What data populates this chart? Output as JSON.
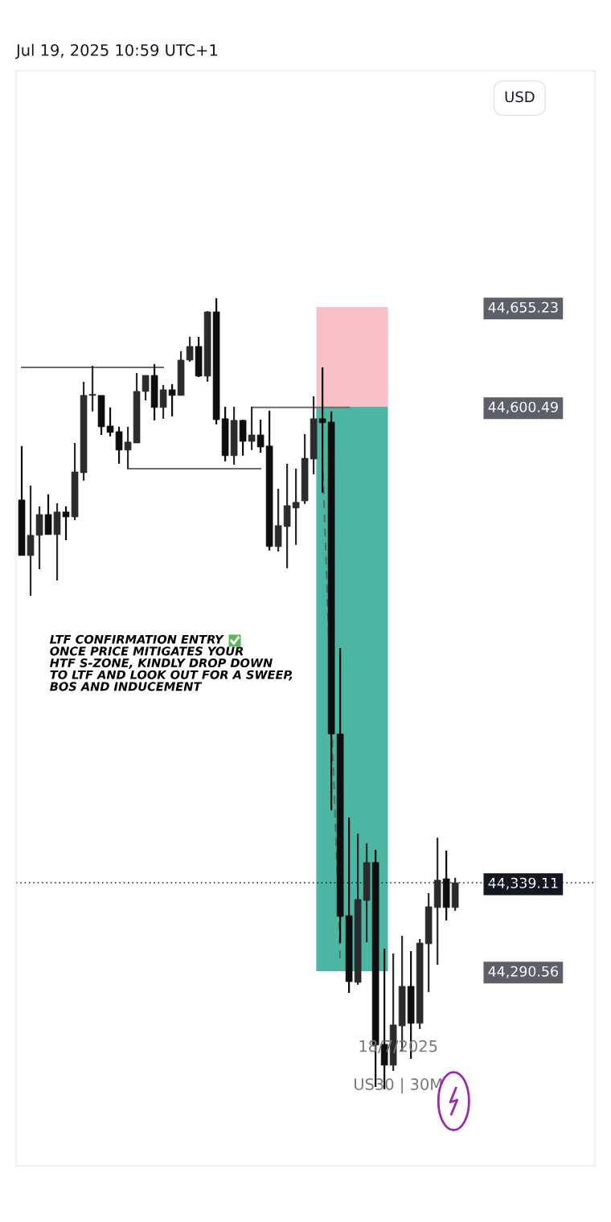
{
  "chart_data": {
    "type": "candlestick",
    "title": "Jul 19, 2025 10:59 UTC+1",
    "categories": [
      null,
      null,
      null,
      null,
      null,
      null,
      null,
      null,
      null,
      null,
      null,
      null,
      null,
      null,
      null,
      null,
      null,
      null,
      null,
      null,
      null,
      null,
      null,
      null,
      null,
      null,
      null,
      null,
      null,
      null,
      null,
      null,
      null,
      null,
      null,
      null,
      null,
      null,
      null,
      null,
      null,
      null,
      null,
      null,
      null,
      null,
      null,
      null,
      null,
      null
    ],
    "ohlc": [
      [
        44549.3,
        44578.9,
        44518.8,
        44518.8
      ],
      [
        44518.8,
        44557.2,
        44496.7,
        44529.9
      ],
      [
        44529.9,
        44545.8,
        44511.3,
        44541.3
      ],
      [
        44541.3,
        44552.4,
        44530.3,
        44530.3
      ],
      [
        44530.3,
        44547.5,
        44505.1,
        44542.7
      ],
      [
        44542.7,
        44545.8,
        44527.2,
        44540.0
      ],
      [
        44540.0,
        44580.6,
        44538.2,
        44564.7
      ],
      [
        44564.3,
        44614.2,
        44559.9,
        44606.7
      ],
      [
        44606.7,
        44623.0,
        44597.9,
        44607.1
      ],
      [
        44606.7,
        44606.7,
        44585.0,
        44589.5
      ],
      [
        44589.9,
        44600.1,
        44584.2,
        44586.4
      ],
      [
        44586.8,
        44589.5,
        44569.2,
        44576.7
      ],
      [
        44576.7,
        44589.5,
        44566.5,
        44581.1
      ],
      [
        44580.6,
        44619.0,
        44580.6,
        44608.9
      ],
      [
        44608.9,
        44617.7,
        44604.0,
        44617.7
      ],
      [
        44617.7,
        44623.9,
        44593.0,
        44600.1
      ],
      [
        44600.1,
        44612.4,
        44593.9,
        44609.8
      ],
      [
        44609.8,
        44612.9,
        44595.2,
        44606.7
      ],
      [
        44606.7,
        44631.0,
        44606.7,
        44626.1
      ],
      [
        44626.1,
        44638.9,
        44625.2,
        44633.6
      ],
      [
        44633.6,
        44638.9,
        44616.8,
        44617.3
      ],
      [
        44617.3,
        44653.0,
        44614.2,
        44652.6
      ],
      [
        44652.6,
        44660.1,
        44590.8,
        44593.4
      ],
      [
        44593.9,
        44600.5,
        44570.5,
        44573.6
      ],
      [
        44573.6,
        44600.5,
        44568.7,
        44593.0
      ],
      [
        44593.0,
        44593.4,
        44573.6,
        44581.5
      ],
      [
        44581.5,
        44600.5,
        44576.7,
        44585.0
      ],
      [
        44585.0,
        44593.4,
        44575.3,
        44578.4
      ],
      [
        44578.9,
        44598.3,
        44521.5,
        44523.7
      ],
      [
        44523.7,
        44555.5,
        44521.0,
        44535.2
      ],
      [
        44534.7,
        44569.2,
        44511.8,
        44546.2
      ],
      [
        44544.9,
        44566.5,
        44524.6,
        44548.0
      ],
      [
        44548.8,
        44585.5,
        44547.1,
        44572.2
      ],
      [
        44571.8,
        44606.2,
        44563.4,
        44593.9
      ],
      [
        44593.9,
        44622.1,
        44553.3,
        44591.7
      ],
      [
        44592.1,
        44597.9,
        44378.9,
        44420.8
      ],
      [
        44420.8,
        44468.0,
        44306.0,
        44320.6
      ],
      [
        44321.0,
        44374.9,
        44278.6,
        44284.8
      ],
      [
        44284.4,
        44366.1,
        44283.1,
        44329.9
      ],
      [
        44329.4,
        44360.8,
        44306.5,
        44350.2
      ],
      [
        44350.2,
        44357.2,
        44227.0,
        44250.0
      ],
      [
        44250.4,
        44302.9,
        44225.7,
        44238.9
      ],
      [
        44238.9,
        44300.3,
        44235.8,
        44261.0
      ],
      [
        44260.5,
        44310.0,
        44246.4,
        44282.2
      ],
      [
        44282.2,
        44301.6,
        44242.4,
        44261.9
      ],
      [
        44261.9,
        44308.2,
        44258.8,
        44306.0
      ],
      [
        44305.6,
        44333.4,
        44279.1,
        44325.9
      ],
      [
        44325.5,
        44363.9,
        44294.1,
        44340.5
      ],
      [
        44341.3,
        44356.8,
        44318.4,
        44325.5
      ],
      [
        44325.5,
        44341.8,
        44323.7,
        44339.1
      ]
    ],
    "series": [
      {
        "type": "line",
        "color": "#6b6b6b",
        "values": [
          44622.1,
          44622.1,
          44622.1,
          44622.1,
          44622.1,
          44622.1,
          44622.1,
          44622.1,
          44622.1,
          44622.1,
          44622.1,
          44622.1,
          44622.1,
          44622.1,
          44622.1,
          44622.1,
          44622.1,
          null,
          null,
          null,
          null,
          null,
          null,
          null,
          null,
          null,
          null,
          null,
          null,
          null,
          null,
          null,
          null,
          null,
          null,
          null,
          null,
          null,
          null,
          null,
          null,
          null,
          null,
          null,
          null,
          null,
          null,
          null,
          null,
          null
        ],
        "line_style": "solid"
      },
      {
        "type": "line",
        "color": "#6b6b6b",
        "values": [
          null,
          null,
          null,
          null,
          null,
          null,
          null,
          null,
          null,
          null,
          null,
          null,
          44566.5,
          44566.5,
          44566.5,
          44566.5,
          44566.5,
          44566.5,
          44566.5,
          44566.5,
          44566.5,
          44566.5,
          44566.5,
          44566.5,
          44566.5,
          44566.5,
          44566.5,
          44566.5,
          null,
          null,
          null,
          null,
          null,
          null,
          null,
          null,
          null,
          null,
          null,
          null,
          null,
          null,
          null,
          null,
          null,
          null,
          null,
          null,
          null,
          null
        ],
        "line_style": "solid"
      },
      {
        "type": "line",
        "color": "#6b6b6b",
        "values": [
          null,
          null,
          null,
          null,
          null,
          null,
          null,
          null,
          null,
          null,
          null,
          null,
          null,
          null,
          null,
          null,
          null,
          null,
          null,
          null,
          null,
          null,
          null,
          null,
          null,
          null,
          44600.1,
          44600.1,
          44600.1,
          44600.1,
          44600.1,
          44600.1,
          44600.1,
          44600.1,
          44600.1,
          44600.1,
          44600.1,
          44600.1,
          null,
          null,
          null,
          null,
          null,
          null,
          null,
          null,
          null,
          null,
          null,
          null
        ],
        "line_style": "solid"
      },
      {
        "type": "line",
        "color": "#4f6f68",
        "values": [
          null,
          null,
          null,
          null,
          null,
          null,
          null,
          null,
          null,
          null,
          null,
          null,
          null,
          null,
          null,
          null,
          null,
          null,
          null,
          null,
          null,
          null,
          null,
          null,
          null,
          null,
          null,
          null,
          null,
          null,
          null,
          null,
          null,
          null,
          44572.2,
          null,
          44296.3,
          null,
          null,
          null,
          null,
          null,
          null,
          null,
          null,
          null,
          null,
          null,
          null,
          null
        ],
        "line_style": "dashed"
      }
    ],
    "ylim": [
      44183.7,
      44785.0
    ],
    "yticks": [
      {
        "value": 44655.23,
        "label": "44,655.23"
      },
      {
        "value": 44600.49,
        "label": "44,600.49"
      },
      {
        "value": 44339.11,
        "label": "44,339.11"
      },
      {
        "value": 44290.56,
        "label": "44,290.56"
      }
    ],
    "tick_labels": "y",
    "grid": false,
    "ref_lines": [
      {
        "axis": "y",
        "value": 44339.11,
        "color": "#131722",
        "line_style": "dotted"
      }
    ],
    "bands": [
      {
        "axis": "y",
        "from": 44600.49,
        "to": 44655.23,
        "color": "#f7c1c7"
      },
      {
        "axis": "y",
        "from": 44290.56,
        "to": 44600.49,
        "color": "#4db6a2"
      }
    ],
    "annotations": [
      "LTF CONFIRMATION ENTRY\nONCE PRICE MITIGATES YOUR\nHTF S-ZONE, KINDLY DROP DOWN\nTO LTF AND LOOK OUT FOR A SWEEP,\nBOS AND INDUCEMENT",
      "18/7/2025",
      "US30 | 30M",
      "USD"
    ]
  }
}
